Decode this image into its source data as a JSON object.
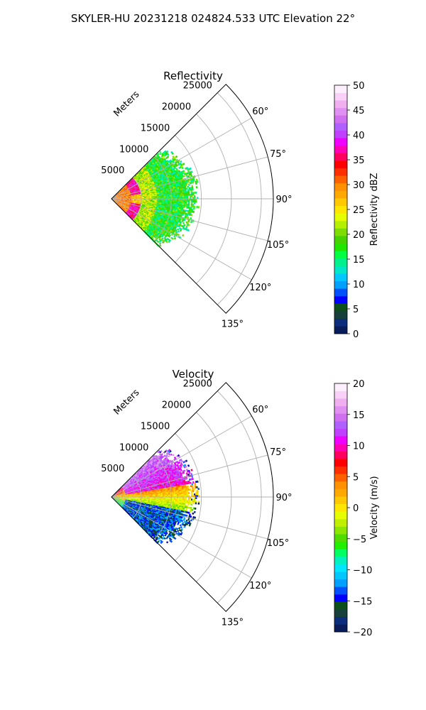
{
  "figure": {
    "title": "SKYLER-HU  20231218  024824.533 UTC Elevation 22°"
  },
  "chart_data": [
    {
      "type": "heatmap",
      "subtype": "polar-sector-radar",
      "title": "Reflectivity",
      "radial_axis_label": "Meters",
      "radial_ticks": [
        "5000",
        "10000",
        "15000",
        "20000",
        "25000"
      ],
      "radial_tick_values": [
        5000,
        10000,
        15000,
        20000,
        25000
      ],
      "rmax": 27000,
      "angle_range_deg": [
        45,
        135
      ],
      "angle_ticks": [
        "60°",
        "75°",
        "90°",
        "105°",
        "120°",
        "135°"
      ],
      "angle_tick_values": [
        60,
        75,
        90,
        105,
        120,
        135
      ],
      "grid": true,
      "data_extent_m": 14000,
      "colorbar": {
        "label": "Reflectivity dBZ",
        "range": [
          0,
          50
        ],
        "ticks": [
          "0",
          "5",
          "10",
          "15",
          "20",
          "25",
          "30",
          "35",
          "40",
          "45",
          "50"
        ],
        "tick_values": [
          0,
          5,
          10,
          15,
          20,
          25,
          30,
          35,
          40,
          45,
          50
        ]
      },
      "field_description_note": "",
      "near_range_value": 30,
      "ring_value": 37,
      "outer_value": 17,
      "colors": [
        "#081c5c",
        "#0b2d7c",
        "#173f3b",
        "#0d4f1a",
        "#0000ff",
        "#0050ff",
        "#00a0ff",
        "#00c8ff",
        "#00e6c8",
        "#00f08c",
        "#00ff40",
        "#20e600",
        "#46d200",
        "#7ddc00",
        "#b4f000",
        "#e6ff00",
        "#ffe600",
        "#ffc800",
        "#ffa800",
        "#ff9000",
        "#ff6000",
        "#ff3000",
        "#ff0000",
        "#ff0060",
        "#ff00b4",
        "#f000ff",
        "#c040ff",
        "#b060ff",
        "#d070f0",
        "#e090f0",
        "#f0b0f0",
        "#f8d0f8",
        "#fdeefd"
      ]
    },
    {
      "type": "heatmap",
      "subtype": "polar-sector-radar",
      "title": "Velocity",
      "radial_axis_label": "Meters",
      "radial_ticks": [
        "5000",
        "10000",
        "15000",
        "20000",
        "25000"
      ],
      "radial_tick_values": [
        5000,
        10000,
        15000,
        20000,
        25000
      ],
      "rmax": 27000,
      "angle_range_deg": [
        45,
        135
      ],
      "angle_ticks": [
        "60°",
        "75°",
        "90°",
        "105°",
        "120°",
        "135°"
      ],
      "angle_tick_values": [
        60,
        75,
        90,
        105,
        120,
        135
      ],
      "grid": true,
      "data_extent_m": 14000,
      "colorbar": {
        "label": "Velocity (m/s)",
        "range": [
          -20,
          20
        ],
        "ticks": [
          "−20",
          "−15",
          "−10",
          "−5",
          "0",
          "5",
          "10",
          "15",
          "20"
        ],
        "tick_values": [
          -20,
          -15,
          -10,
          -5,
          0,
          5,
          10,
          15,
          20
        ]
      },
      "north_value": 14,
      "center_value": 0,
      "south_value": -14,
      "colors": [
        "#081c5c",
        "#0b2d7c",
        "#173f3b",
        "#0d4f1a",
        "#0000ff",
        "#0050ff",
        "#00a0ff",
        "#00c8ff",
        "#00e6ff",
        "#00f0c0",
        "#00ff60",
        "#20f000",
        "#50dc00",
        "#8ce600",
        "#c0f000",
        "#e6ff00",
        "#ffe600",
        "#ffc800",
        "#ffa800",
        "#ff9000",
        "#ff6000",
        "#ff3000",
        "#ff0000",
        "#ff0060",
        "#ff00b4",
        "#f000ff",
        "#c040ff",
        "#b060ff",
        "#d070f0",
        "#e090f0",
        "#f0b0f0",
        "#f8d0f8",
        "#fdeefd"
      ]
    }
  ]
}
